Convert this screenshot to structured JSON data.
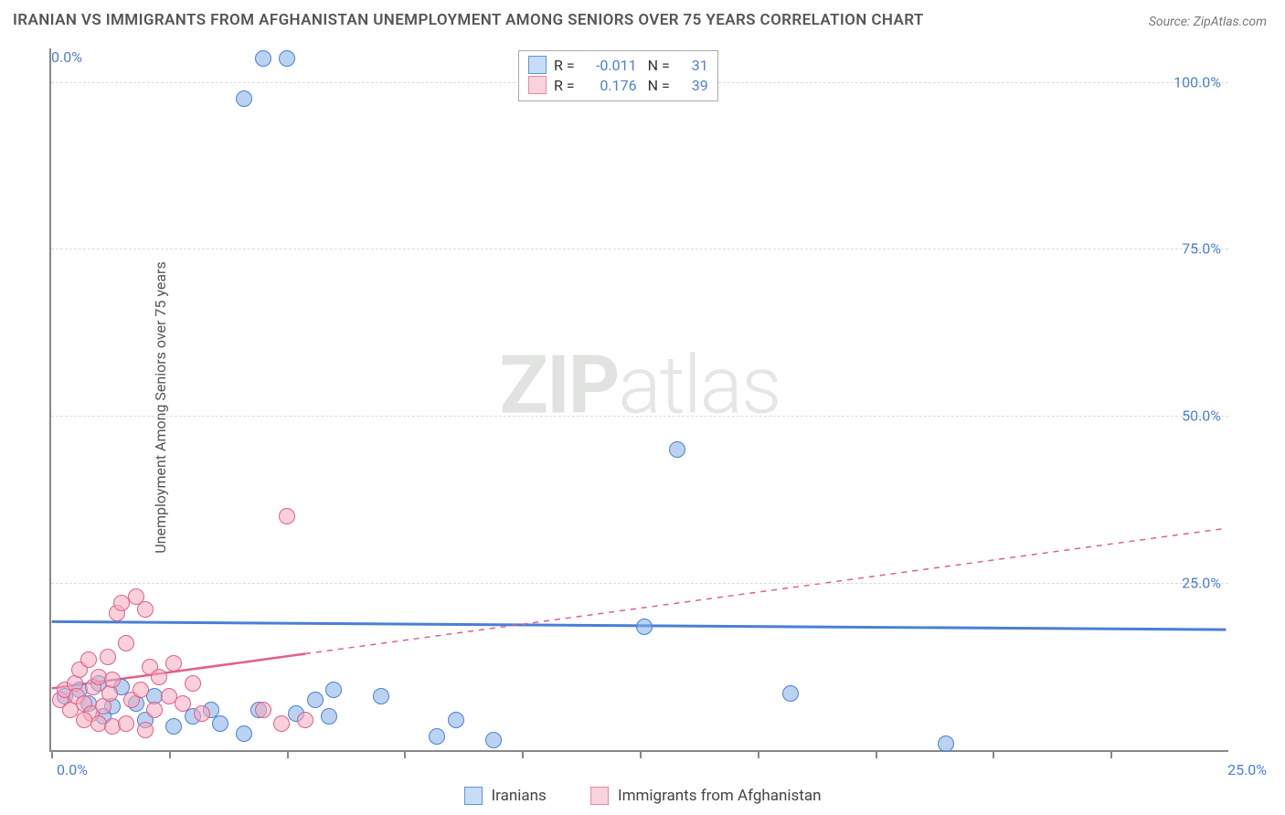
{
  "title": "IRANIAN VS IMMIGRANTS FROM AFGHANISTAN UNEMPLOYMENT AMONG SENIORS OVER 75 YEARS CORRELATION CHART",
  "source": "Source: ZipAtlas.com",
  "ylabel": "Unemployment Among Seniors over 75 years",
  "watermark_a": "ZIP",
  "watermark_b": "atlas",
  "chart": {
    "type": "scatter",
    "xlim": [
      0,
      25
    ],
    "ylim": [
      0,
      105
    ],
    "x_ticks": [
      0,
      2.5,
      5,
      7.5,
      10,
      12.5,
      15,
      17.5,
      20,
      22.5
    ],
    "x_tick_labels": {
      "left": "0.0%",
      "right": "25.0%"
    },
    "y_ticks": [
      {
        "v": 25,
        "label": "25.0%"
      },
      {
        "v": 50,
        "label": "50.0%"
      },
      {
        "v": 75,
        "label": "75.0%"
      },
      {
        "v": 100,
        "label": "100.0%"
      }
    ],
    "y_bottom_label": "0.0%",
    "grid_color": "#dddddd",
    "axis_color": "#888888",
    "background_color": "#ffffff",
    "point_radius": 9,
    "series": [
      {
        "name": "Iranians",
        "color_fill": "#c7ddf5",
        "color_stroke": "#4a7fd6",
        "R": "-0.011",
        "N": "31",
        "trend": {
          "y_at_x0": 19.0,
          "y_at_xmax": 17.8,
          "solid_until_x": 25,
          "stroke_width": 3
        },
        "points": [
          [
            4.5,
            103.5
          ],
          [
            5.0,
            103.5
          ],
          [
            4.1,
            97.5
          ],
          [
            13.3,
            45.0
          ],
          [
            12.6,
            18.5
          ],
          [
            15.7,
            8.5
          ],
          [
            19.0,
            1.0
          ],
          [
            0.3,
            8.0
          ],
          [
            0.6,
            9.0
          ],
          [
            0.8,
            7.0
          ],
          [
            1.0,
            10.0
          ],
          [
            1.3,
            6.5
          ],
          [
            1.5,
            9.5
          ],
          [
            1.1,
            5.0
          ],
          [
            1.8,
            7.0
          ],
          [
            2.0,
            4.5
          ],
          [
            2.2,
            8.0
          ],
          [
            2.6,
            3.5
          ],
          [
            3.0,
            5.0
          ],
          [
            3.4,
            6.0
          ],
          [
            3.6,
            4.0
          ],
          [
            4.1,
            2.5
          ],
          [
            4.4,
            6.0
          ],
          [
            5.2,
            5.5
          ],
          [
            5.6,
            7.5
          ],
          [
            5.9,
            5.0
          ],
          [
            6.0,
            9.0
          ],
          [
            7.0,
            8.0
          ],
          [
            8.2,
            2.0
          ],
          [
            8.6,
            4.5
          ],
          [
            9.4,
            1.5
          ]
        ]
      },
      {
        "name": "Immigrants from Afghanistan",
        "color_fill": "#fbd3dd",
        "color_stroke": "#e06088",
        "R": "0.176",
        "N": "39",
        "trend": {
          "y_at_x0": 9.0,
          "y_at_xmax": 33.0,
          "solid_until_x": 5.4,
          "stroke_width": 2.5
        },
        "points": [
          [
            5.0,
            35.0
          ],
          [
            0.2,
            7.5
          ],
          [
            0.3,
            9.0
          ],
          [
            0.4,
            6.0
          ],
          [
            0.5,
            10.0
          ],
          [
            0.55,
            8.0
          ],
          [
            0.6,
            12.0
          ],
          [
            0.7,
            7.0
          ],
          [
            0.8,
            13.5
          ],
          [
            0.85,
            5.5
          ],
          [
            0.9,
            9.5
          ],
          [
            1.0,
            11.0
          ],
          [
            1.1,
            6.5
          ],
          [
            1.2,
            14.0
          ],
          [
            1.25,
            8.5
          ],
          [
            1.3,
            10.5
          ],
          [
            1.4,
            20.5
          ],
          [
            1.5,
            22.0
          ],
          [
            1.6,
            16.0
          ],
          [
            1.7,
            7.5
          ],
          [
            1.8,
            23.0
          ],
          [
            1.9,
            9.0
          ],
          [
            2.0,
            21.0
          ],
          [
            2.1,
            12.5
          ],
          [
            2.2,
            6.0
          ],
          [
            2.3,
            11.0
          ],
          [
            2.5,
            8.0
          ],
          [
            2.6,
            13.0
          ],
          [
            2.8,
            7.0
          ],
          [
            3.0,
            10.0
          ],
          [
            3.2,
            5.5
          ],
          [
            1.0,
            4.0
          ],
          [
            1.3,
            3.5
          ],
          [
            0.7,
            4.5
          ],
          [
            1.6,
            4.0
          ],
          [
            2.0,
            3.0
          ],
          [
            4.5,
            6.0
          ],
          [
            4.9,
            4.0
          ],
          [
            5.4,
            4.5
          ]
        ]
      }
    ]
  },
  "legend_bottom": [
    "Iranians",
    "Immigrants from Afghanistan"
  ]
}
